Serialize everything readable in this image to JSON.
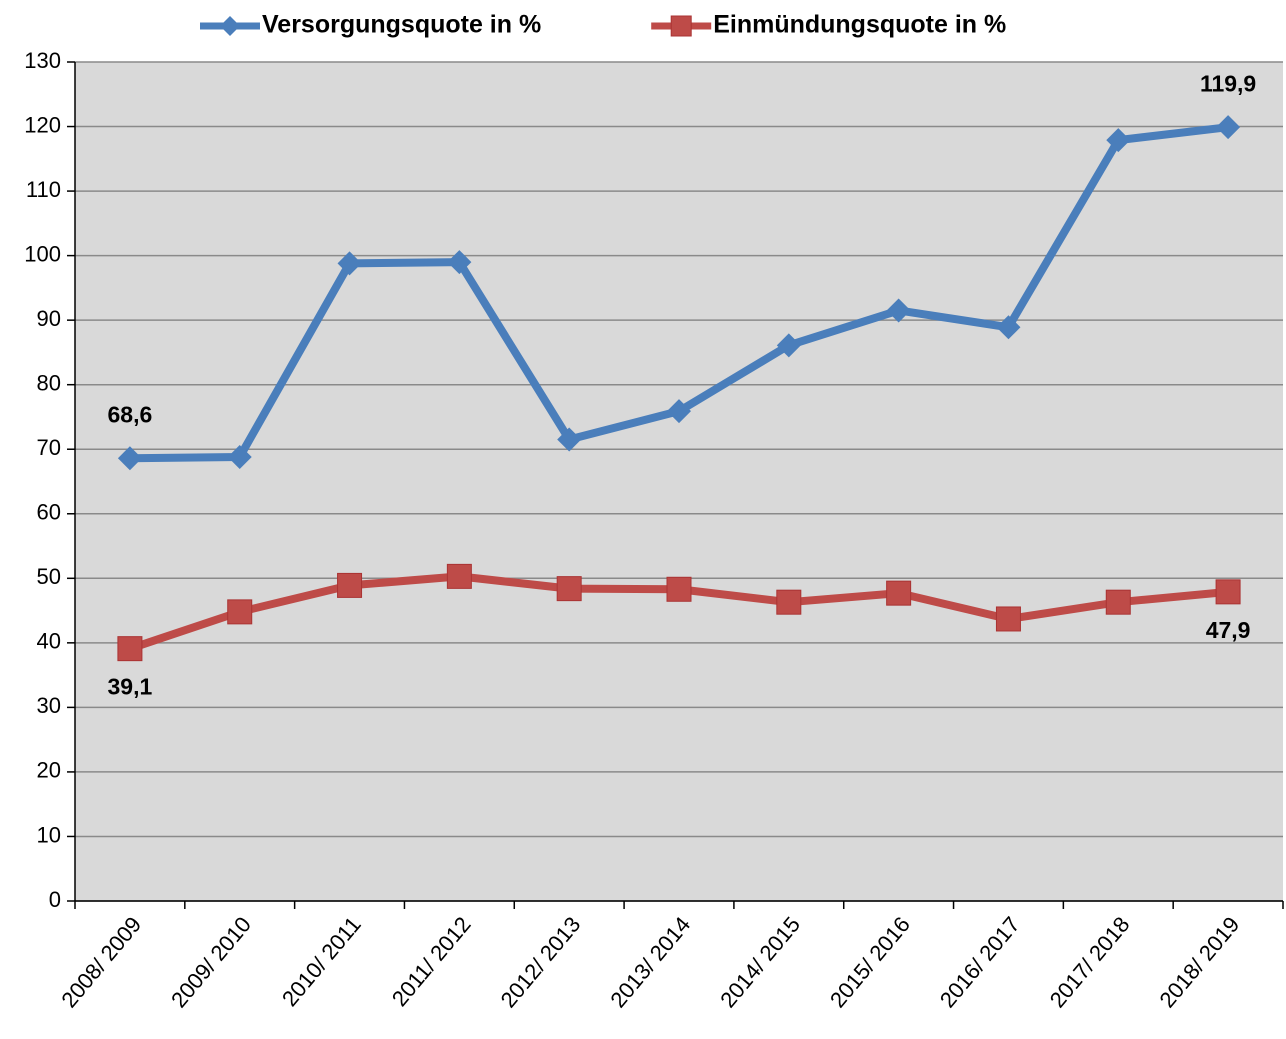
{
  "chart_data": {
    "type": "line",
    "categories": [
      "2008/ 2009",
      "2009/ 2010",
      "2010/ 2011",
      "2011/ 2012",
      "2012/ 2013",
      "2013/ 2014",
      "2014/ 2015",
      "2015/ 2016",
      "2016/ 2017",
      "2017/ 2018",
      "2018/ 2019"
    ],
    "series": [
      {
        "name": "Versorgungsquote in %",
        "color": "#4a7ebb",
        "marker": "diamond",
        "values": [
          68.6,
          68.8,
          98.8,
          99.0,
          71.5,
          75.9,
          86.1,
          91.5,
          88.9,
          117.9,
          119.9
        ],
        "value_labels": [
          "68,6",
          null,
          null,
          null,
          null,
          null,
          null,
          null,
          null,
          null,
          "119,9"
        ]
      },
      {
        "name": "Einmündungsquote in %",
        "color": "#be4b48",
        "marker": "square",
        "values": [
          39.1,
          44.8,
          48.9,
          50.3,
          48.4,
          48.3,
          46.3,
          47.7,
          43.7,
          46.3,
          47.9
        ],
        "value_labels": [
          "39,1",
          null,
          null,
          null,
          null,
          null,
          null,
          null,
          null,
          null,
          "47,9"
        ]
      }
    ],
    "ylim": [
      0,
      130
    ],
    "yticks": [
      0,
      10,
      20,
      30,
      40,
      50,
      60,
      70,
      80,
      90,
      100,
      110,
      120,
      130
    ],
    "grid": true,
    "legend": "top"
  }
}
